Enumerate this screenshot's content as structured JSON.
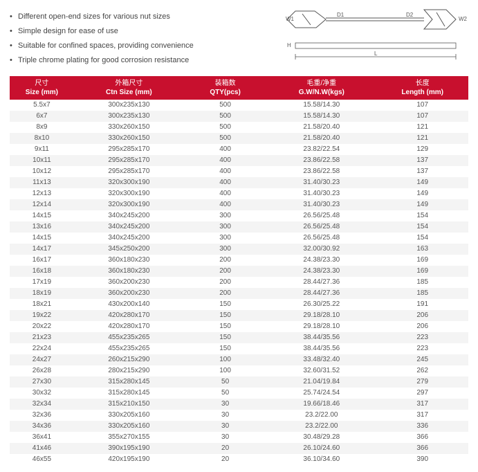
{
  "features": [
    "Different open-end sizes for various nut sizes",
    "Simple design for ease of use",
    "Suitable for confined spaces, providing convenience",
    "Triple chrome plating for good corrosion resistance"
  ],
  "diagram": {
    "labels": {
      "w1": "W1",
      "w2": "W2",
      "d1": "D1",
      "d2": "D2",
      "h": "H",
      "l": "L"
    },
    "stroke_color": "#555555",
    "text_color": "#555555"
  },
  "table": {
    "header_bg": "#c8102e",
    "header_fg": "#ffffff",
    "row_alt_bg": "#f4f4f4",
    "text_color": "#555555",
    "columns": [
      {
        "cn": "尺寸",
        "en": "Size (mm)"
      },
      {
        "cn": "外箱尺寸",
        "en": "Ctn Size (mm)"
      },
      {
        "cn": "装箱数",
        "en": "QTY(pcs)"
      },
      {
        "cn": "毛重/净重",
        "en": "G.W/N.W(kgs)"
      },
      {
        "cn": "长度",
        "en": "Length (mm)"
      }
    ],
    "rows": [
      [
        "5.5x7",
        "300x235x130",
        "500",
        "15.58/14.30",
        "107"
      ],
      [
        "6x7",
        "300x235x130",
        "500",
        "15.58/14.30",
        "107"
      ],
      [
        "8x9",
        "330x260x150",
        "500",
        "21.58/20.40",
        "121"
      ],
      [
        "8x10",
        "330x260x150",
        "500",
        "21.58/20.40",
        "121"
      ],
      [
        "9x11",
        "295x285x170",
        "400",
        "23.82/22.54",
        "129"
      ],
      [
        "10x11",
        "295x285x170",
        "400",
        "23.86/22.58",
        "137"
      ],
      [
        "10x12",
        "295x285x170",
        "400",
        "23.86/22.58",
        "137"
      ],
      [
        "11x13",
        "320x300x190",
        "400",
        "31.40/30.23",
        "149"
      ],
      [
        "12x13",
        "320x300x190",
        "400",
        "31.40/30.23",
        "149"
      ],
      [
        "12x14",
        "320x300x190",
        "400",
        "31.40/30.23",
        "149"
      ],
      [
        "14x15",
        "340x245x200",
        "300",
        "26.56/25.48",
        "154"
      ],
      [
        "13x16",
        "340x245x200",
        "300",
        "26.56/25.48",
        "154"
      ],
      [
        "14x15",
        "340x245x200",
        "300",
        "26.56/25.48",
        "154"
      ],
      [
        "14x17",
        "345x250x200",
        "300",
        "32.00/30.92",
        "163"
      ],
      [
        "16x17",
        "360x180x230",
        "200",
        "24.38/23.30",
        "169"
      ],
      [
        "16x18",
        "360x180x230",
        "200",
        "24.38/23.30",
        "169"
      ],
      [
        "17x19",
        "360x200x230",
        "200",
        "28.44/27.36",
        "185"
      ],
      [
        "18x19",
        "360x200x230",
        "200",
        "28.44/27.36",
        "185"
      ],
      [
        "18x21",
        "430x200x140",
        "150",
        "26.30/25.22",
        "191"
      ],
      [
        "19x22",
        "420x280x170",
        "150",
        "29.18/28.10",
        "206"
      ],
      [
        "20x22",
        "420x280x170",
        "150",
        "29.18/28.10",
        "206"
      ],
      [
        "21x23",
        "455x235x265",
        "150",
        "38.44/35.56",
        "223"
      ],
      [
        "22x24",
        "455x235x265",
        "150",
        "38.44/35.56",
        "223"
      ],
      [
        "24x27",
        "260x215x290",
        "100",
        "33.48/32.40",
        "245"
      ],
      [
        "26x28",
        "280x215x290",
        "100",
        "32.60/31.52",
        "262"
      ],
      [
        "27x30",
        "315x280x145",
        "50",
        "21.04/19.84",
        "279"
      ],
      [
        "30x32",
        "315x280x145",
        "50",
        "25.74/24.54",
        "297"
      ],
      [
        "32x34",
        "315x210x150",
        "30",
        "19.66/18.46",
        "317"
      ],
      [
        "32x36",
        "330x205x160",
        "30",
        "23.2/22.00",
        "317"
      ],
      [
        "34x36",
        "330x205x160",
        "30",
        "23.2/22.00",
        "336"
      ],
      [
        "36x41",
        "355x270x155",
        "30",
        "30.48/29.28",
        "366"
      ],
      [
        "41x46",
        "390x195x190",
        "20",
        "26.10/24.60",
        "366"
      ],
      [
        "46x55",
        "420x195x190",
        "20",
        "36.10/34.60",
        "390"
      ]
    ]
  }
}
